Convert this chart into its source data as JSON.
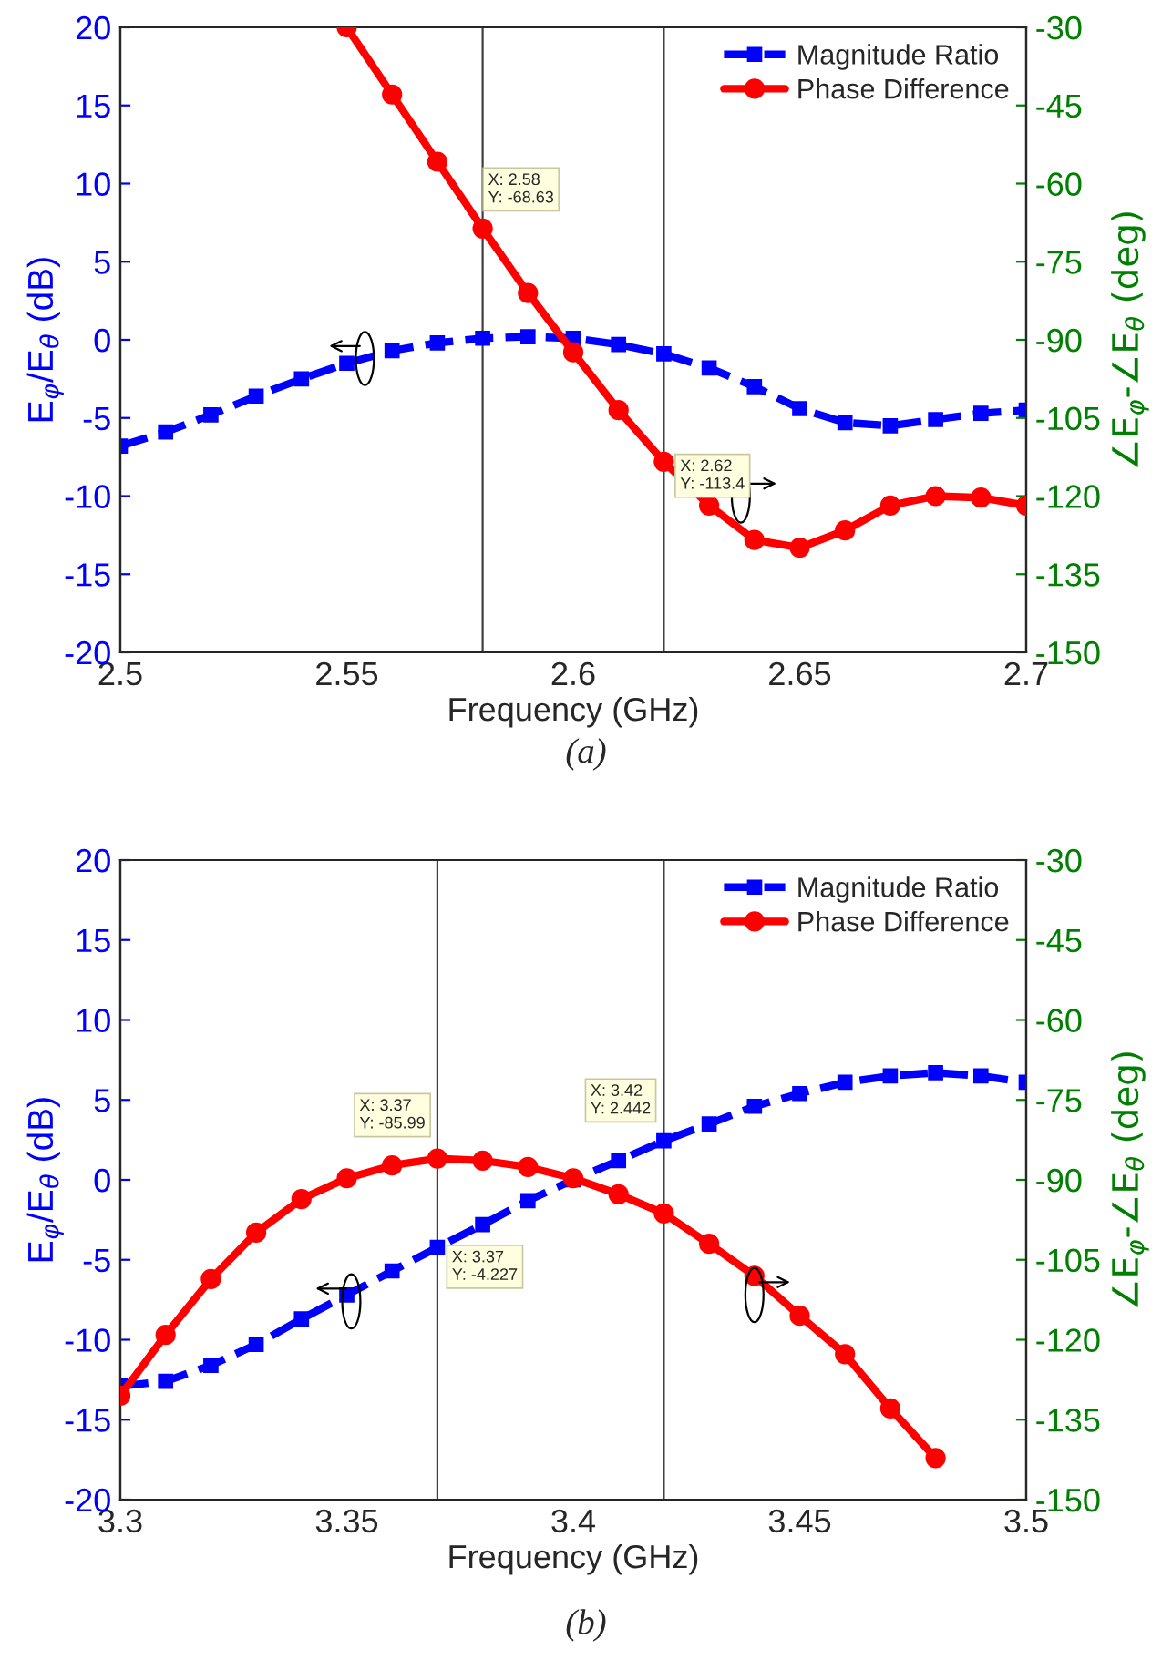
{
  "chart_data": [
    {
      "type": "line",
      "x": [
        2.5,
        2.51,
        2.52,
        2.53,
        2.54,
        2.55,
        2.56,
        2.57,
        2.58,
        2.59,
        2.6,
        2.61,
        2.62,
        2.63,
        2.64,
        2.65,
        2.66,
        2.67,
        2.68,
        2.69,
        2.7
      ],
      "xlabel": "Frequency (GHz)",
      "ylabel": "E$_{φ}$/E$_{θ}$ (dB)",
      "y2label": "∠E$_{φ}$-∠E$_{θ}$ (deg)",
      "xlim": [
        2.5,
        2.7
      ],
      "xticks": [
        2.5,
        2.55,
        2.6,
        2.65,
        2.7
      ],
      "ylim": [
        -20,
        20
      ],
      "yticks": [
        -20,
        -15,
        -10,
        -5,
        0,
        5,
        10,
        15,
        20
      ],
      "y2lim": [
        -150,
        -30
      ],
      "y2ticks": [
        -150,
        -135,
        -120,
        -105,
        -90,
        -75,
        -60,
        -45,
        -30
      ],
      "series": [
        {
          "name": "Magnitude Ratio",
          "color": "#0000ff",
          "marker": "square",
          "line_style": "dashed",
          "values": [
            -6.8,
            -5.9,
            -4.8,
            -3.6,
            -2.5,
            -1.5,
            -0.7,
            -0.2,
            0.1,
            0.2,
            0.1,
            -0.3,
            -0.9,
            -1.8,
            -3.0,
            -4.4,
            -5.3,
            -5.5,
            -5.1,
            -4.7,
            -4.5
          ]
        },
        {
          "name": "Phase Difference",
          "color": "#ff0000",
          "marker": "circle",
          "line_style": "solid",
          "axis": "y2",
          "values": [
            null,
            null,
            null,
            null,
            null,
            -30,
            -42.9,
            -55.8,
            -68.63,
            -81,
            -92.4,
            -103.5,
            -113.4,
            -121.8,
            -128.4,
            -129.9,
            -126.6,
            -121.8,
            -120,
            -120.3,
            -121.8
          ]
        }
      ],
      "ref_lines": [
        {
          "axis": "x",
          "value": 2.58,
          "color": "#404040"
        },
        {
          "axis": "x",
          "value": 2.62,
          "color": "#404040"
        }
      ],
      "annotations": [
        "X: 2.58\nY: -68.63",
        "X: 2.62\nY: -113.4",
        "(a)"
      ],
      "legend": "top right",
      "grid": false
    },
    {
      "type": "line",
      "x": [
        3.3,
        3.31,
        3.32,
        3.33,
        3.34,
        3.35,
        3.36,
        3.37,
        3.38,
        3.39,
        3.4,
        3.41,
        3.42,
        3.43,
        3.44,
        3.45,
        3.46,
        3.47,
        3.48,
        3.49,
        3.5
      ],
      "xlabel": "Frequency (GHz)",
      "ylabel": "E$_{φ}$/E$_{θ}$ (dB)",
      "y2label": "∠E$_{φ}$-∠E$_{θ}$ (deg)",
      "xlim": [
        3.3,
        3.5
      ],
      "xticks": [
        3.3,
        3.35,
        3.4,
        3.45,
        3.5
      ],
      "ylim": [
        -20,
        20
      ],
      "yticks": [
        -20,
        -15,
        -10,
        -5,
        0,
        5,
        10,
        15,
        20
      ],
      "y2lim": [
        -150,
        -30
      ],
      "y2ticks": [
        -150,
        -135,
        -120,
        -105,
        -90,
        -75,
        -60,
        -45,
        -30
      ],
      "series": [
        {
          "name": "Magnitude Ratio",
          "color": "#0000ff",
          "marker": "square",
          "line_style": "dashed",
          "values": [
            -12.9,
            -12.6,
            -11.6,
            -10.3,
            -8.7,
            -7.2,
            -5.7,
            -4.227,
            -2.8,
            -1.3,
            0.0,
            1.2,
            2.442,
            3.5,
            4.6,
            5.4,
            6.1,
            6.5,
            6.7,
            6.5,
            6.1
          ]
        },
        {
          "name": "Phase Difference",
          "color": "#ff0000",
          "marker": "circle",
          "line_style": "solid",
          "axis": "y2",
          "values": [
            -130.5,
            -119.1,
            -108.6,
            -99.9,
            -93.6,
            -89.7,
            -87.3,
            -85.99,
            -86.4,
            -87.6,
            -89.7,
            -92.7,
            -96.3,
            -102,
            -108,
            -115.5,
            -122.7,
            -132.9,
            -142.2,
            null,
            null
          ]
        }
      ],
      "ref_lines": [
        {
          "axis": "x",
          "value": 3.37,
          "color": "#404040"
        },
        {
          "axis": "x",
          "value": 3.42,
          "color": "#404040"
        }
      ],
      "annotations": [
        "X: 3.37\nY: -85.99",
        "X: 3.42\nY: 2.442",
        "X: 3.37\nY: -4.227",
        "(b)"
      ],
      "legend": "top right",
      "grid": false
    }
  ]
}
